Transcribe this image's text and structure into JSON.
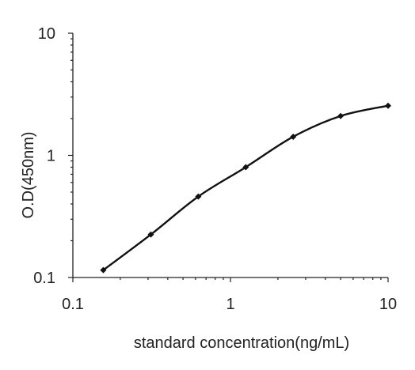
{
  "chart_data": {
    "type": "line",
    "title": "",
    "xlabel": "standard concentration(ng/mL)",
    "ylabel": "O.D(450nm)",
    "x_scale": "log",
    "y_scale": "log",
    "xlim": [
      0.1,
      10
    ],
    "ylim": [
      0.1,
      10
    ],
    "x_ticks": [
      {
        "value": 0.1,
        "label": "0.1"
      },
      {
        "value": 1,
        "label": "1"
      },
      {
        "value": 10,
        "label": "10"
      }
    ],
    "y_ticks": [
      {
        "value": 0.1,
        "label": "0.1"
      },
      {
        "value": 1,
        "label": "1"
      },
      {
        "value": 10,
        "label": "10"
      }
    ],
    "grid": false,
    "legend": "none",
    "series": [
      {
        "color": "#111111",
        "marker": "diamond",
        "smooth": true,
        "x": [
          0.156,
          0.3125,
          0.625,
          1.25,
          2.5,
          5,
          10
        ],
        "y": [
          0.115,
          0.225,
          0.46,
          0.8,
          1.42,
          2.1,
          2.55
        ]
      }
    ]
  }
}
